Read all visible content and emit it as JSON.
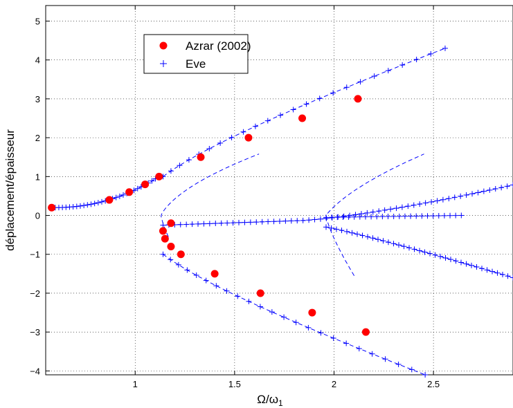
{
  "chart_data": {
    "type": "scatter",
    "title": "",
    "xlabel": "Ω/ω",
    "xlabel_sub": "1",
    "ylabel": "déplacement/épaisseur",
    "xlim": [
      0.55,
      2.9
    ],
    "ylim": [
      -4.1,
      5.4
    ],
    "xticks": [
      1,
      1.5,
      2,
      2.5
    ],
    "xtick_labels": [
      "1",
      "1.5",
      "2",
      "2.5"
    ],
    "yticks": [
      -4,
      -3,
      -2,
      -1,
      0,
      1,
      2,
      3,
      4,
      5
    ],
    "ytick_labels": [
      "−4",
      "−3",
      "−2",
      "−1",
      "0",
      "1",
      "2",
      "3",
      "4",
      "5"
    ],
    "grid": true,
    "legend_position": "top-left",
    "colors": {
      "azrar": "#ff0000",
      "eve": "#0000ff"
    },
    "series": [
      {
        "name": "Azrar (2002)",
        "marker": "filled-circle",
        "points": [
          [
            0.58,
            0.2
          ],
          [
            0.87,
            0.4
          ],
          [
            0.97,
            0.6
          ],
          [
            1.05,
            0.8
          ],
          [
            1.12,
            1.0
          ],
          [
            1.33,
            1.5
          ],
          [
            1.57,
            2.0
          ],
          [
            1.84,
            2.5
          ],
          [
            2.12,
            3.0
          ],
          [
            1.18,
            -0.2
          ],
          [
            1.14,
            -0.4
          ],
          [
            1.15,
            -0.6
          ],
          [
            1.18,
            -0.8
          ],
          [
            1.23,
            -1.0
          ],
          [
            1.4,
            -1.5
          ],
          [
            1.63,
            -2.0
          ],
          [
            1.89,
            -2.5
          ],
          [
            2.16,
            -3.0
          ]
        ]
      },
      {
        "name": "Eve",
        "marker": "plus",
        "curves": [
          {
            "a0": 0.2,
            "amax": 4.3,
            "n": 46
          },
          {
            "a0": 0.2,
            "amax": -4.1,
            "n": 46
          }
        ],
        "inner_arcs": [
          {
            "w0": 1.13,
            "a_top": 1.58,
            "a_bot": -0.55,
            "n": 48
          },
          {
            "w0": 1.96,
            "a_top": 1.58,
            "a_bot": -1.55,
            "n": 48
          }
        ]
      }
    ]
  }
}
